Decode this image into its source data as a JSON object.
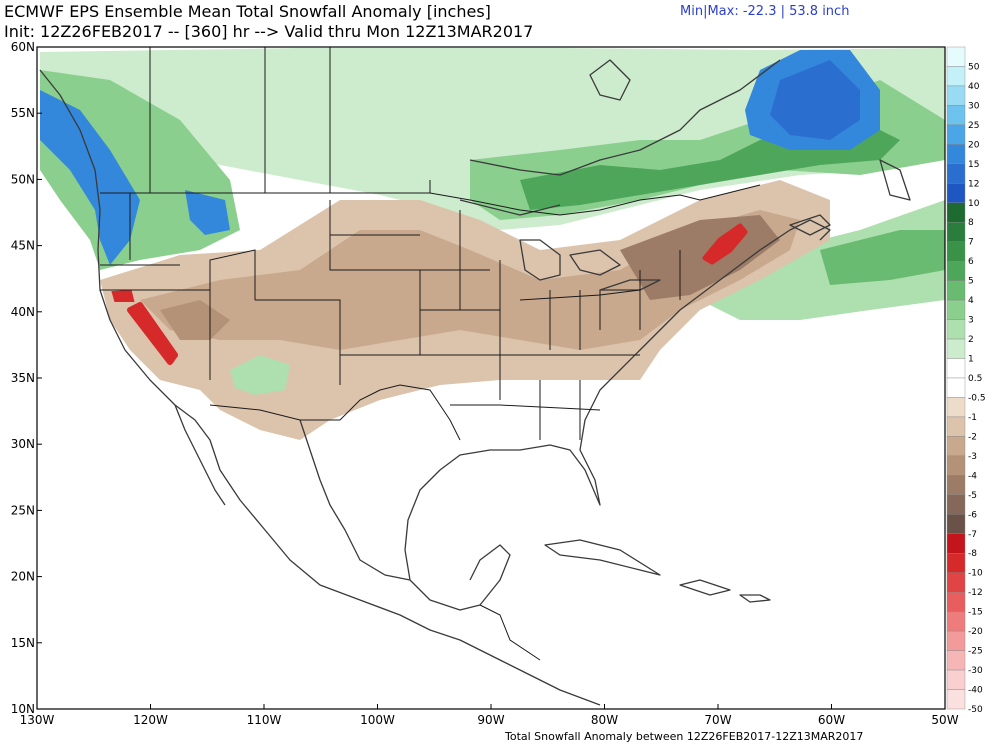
{
  "header": {
    "title_line1": "ECMWF EPS Ensemble Mean Total Snowfall Anomaly [inches]",
    "title_line2": "Init: 12Z26FEB2017 -- [360] hr --> Valid thru Mon 12Z13MAR2017",
    "minmax": "Min|Max: -22.3 | 53.8 inch",
    "minmax_color": "#2a3fd0"
  },
  "footer": "Total Snowfall Anomaly between 12Z26FEB2017-12Z13MAR2017",
  "axes": {
    "lat_labels": [
      "60N",
      "55N",
      "50N",
      "45N",
      "40N",
      "35N",
      "30N",
      "25N",
      "20N",
      "15N",
      "10N"
    ],
    "lon_labels": [
      "130W",
      "120W",
      "110W",
      "100W",
      "90W",
      "80W",
      "70W",
      "60W",
      "50W"
    ],
    "lon_range": [
      -130,
      -50
    ],
    "lat_range": [
      10,
      60
    ]
  },
  "legend": {
    "items": [
      {
        "label": "50",
        "color": "#e6fbfd"
      },
      {
        "label": "40",
        "color": "#c4f0f8"
      },
      {
        "label": "30",
        "color": "#99dbf3"
      },
      {
        "label": "25",
        "color": "#6dc3ee"
      },
      {
        "label": "20",
        "color": "#4aa6e6"
      },
      {
        "label": "15",
        "color": "#3488dc"
      },
      {
        "label": "12",
        "color": "#2a6fd0"
      },
      {
        "label": "10",
        "color": "#1f57c2"
      },
      {
        "label": "8",
        "color": "#1e6b32"
      },
      {
        "label": "7",
        "color": "#2a7d3c"
      },
      {
        "label": "6",
        "color": "#3a9148"
      },
      {
        "label": "5",
        "color": "#4ea65a"
      },
      {
        "label": "4",
        "color": "#68bb70"
      },
      {
        "label": "3",
        "color": "#8acf8e"
      },
      {
        "label": "2",
        "color": "#addfaf"
      },
      {
        "label": "1",
        "color": "#cdeccd"
      },
      {
        "label": "0.5",
        "color": "#ffffff"
      },
      {
        "label": "-0.5",
        "color": "#ffffff"
      },
      {
        "label": "-1",
        "color": "#eedccb"
      },
      {
        "label": "-2",
        "color": "#dcc3ab"
      },
      {
        "label": "-3",
        "color": "#c8a98e"
      },
      {
        "label": "-4",
        "color": "#b39277"
      },
      {
        "label": "-5",
        "color": "#9c7c66"
      },
      {
        "label": "-6",
        "color": "#85685a"
      },
      {
        "label": "-7",
        "color": "#6b5248"
      },
      {
        "label": "-8",
        "color": "#c4141c"
      },
      {
        "label": "-10",
        "color": "#d62a2a"
      },
      {
        "label": "-12",
        "color": "#e04444"
      },
      {
        "label": "-15",
        "color": "#e85e5e"
      },
      {
        "label": "-20",
        "color": "#ee7c7c"
      },
      {
        "label": "-25",
        "color": "#f39a9a"
      },
      {
        "label": "-30",
        "color": "#f6b6b6"
      },
      {
        "label": "-40",
        "color": "#f9cfcf"
      },
      {
        "label": "-50",
        "color": "#fbe0e0"
      }
    ]
  },
  "colors": {
    "ocean": "#ffffff",
    "coast": "#3a3a3a",
    "border": "#1a1a1a"
  }
}
